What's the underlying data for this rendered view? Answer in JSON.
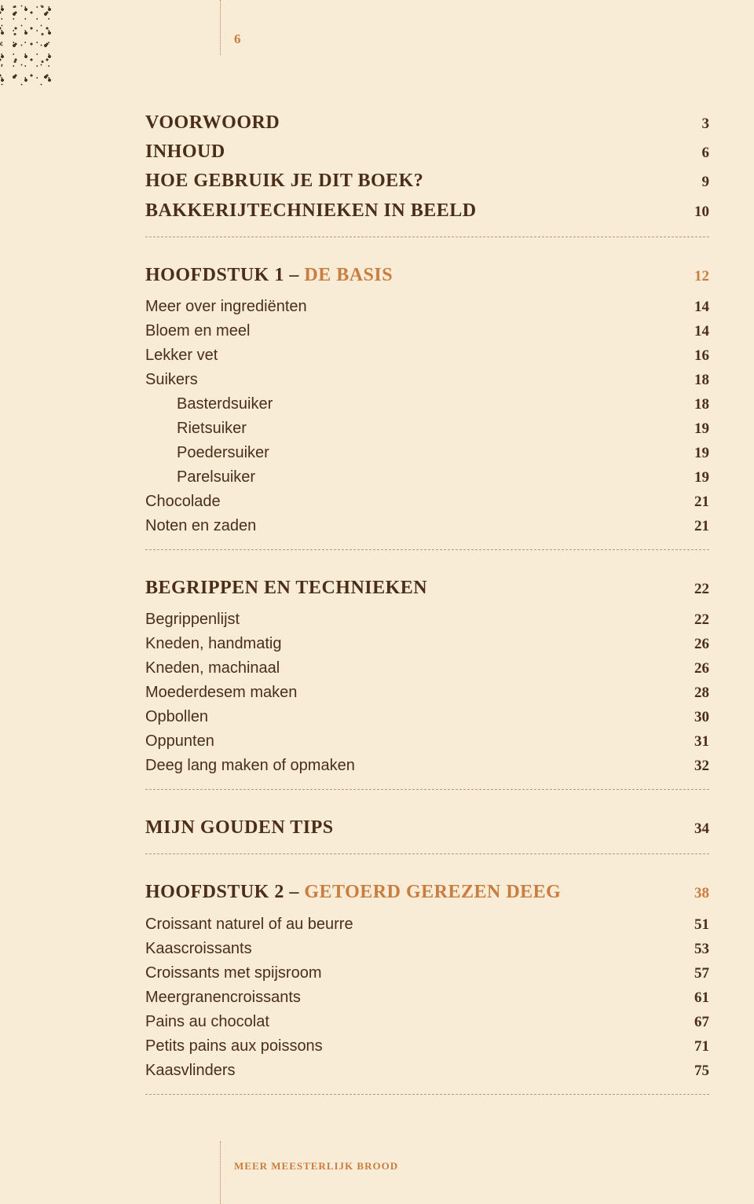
{
  "page_number": "6",
  "footer": "MEER MEESTERLIJK BROOD",
  "front": [
    {
      "label": "VOORWOORD",
      "page": "3"
    },
    {
      "label": "INHOUD",
      "page": "6"
    },
    {
      "label": "HOE GEBRUIK JE DIT BOEK?",
      "page": "9"
    },
    {
      "label": "BAKKERIJTECHNIEKEN IN BEELD",
      "page": "10"
    }
  ],
  "chapter1": {
    "prefix": "HOOFDSTUK 1 – ",
    "title": "DE BASIS",
    "page": "12",
    "items": [
      {
        "label": "Meer over ingrediënten",
        "page": "14",
        "indent": false
      },
      {
        "label": "Bloem en meel",
        "page": "14",
        "indent": false
      },
      {
        "label": "Lekker vet",
        "page": "16",
        "indent": false
      },
      {
        "label": "Suikers",
        "page": "18",
        "indent": false
      },
      {
        "label": "Basterdsuiker",
        "page": "18",
        "indent": true
      },
      {
        "label": "Rietsuiker",
        "page": "19",
        "indent": true
      },
      {
        "label": "Poedersuiker",
        "page": "19",
        "indent": true
      },
      {
        "label": "Parelsuiker",
        "page": "19",
        "indent": true
      },
      {
        "label": "Chocolade",
        "page": "21",
        "indent": false
      },
      {
        "label": "Noten en zaden",
        "page": "21",
        "indent": false
      }
    ]
  },
  "begrippen": {
    "title": "BEGRIPPEN EN TECHNIEKEN",
    "page": "22",
    "items": [
      {
        "label": "Begrippenlijst",
        "page": "22"
      },
      {
        "label": "Kneden, handmatig",
        "page": "26"
      },
      {
        "label": "Kneden, machinaal",
        "page": "26"
      },
      {
        "label": "Moederdesem maken",
        "page": "28"
      },
      {
        "label": "Opbollen",
        "page": "30"
      },
      {
        "label": "Oppunten",
        "page": "31"
      },
      {
        "label": "Deeg lang maken of opmaken",
        "page": "32"
      }
    ]
  },
  "tips": {
    "title": "MIJN GOUDEN TIPS",
    "page": "34"
  },
  "chapter2": {
    "prefix": "HOOFDSTUK 2 – ",
    "title": "GETOERD GEREZEN DEEG",
    "page": "38",
    "items": [
      {
        "label": "Croissant naturel of au beurre",
        "page": "51"
      },
      {
        "label": "Kaascroissants",
        "page": "53"
      },
      {
        "label": "Croissants met spijsroom",
        "page": "57"
      },
      {
        "label": "Meergranencroissants",
        "page": "61"
      },
      {
        "label": "Pains au chocolat",
        "page": "67"
      },
      {
        "label": "Petits pains aux poissons",
        "page": "71"
      },
      {
        "label": "Kaasvlinders",
        "page": "75"
      }
    ]
  }
}
